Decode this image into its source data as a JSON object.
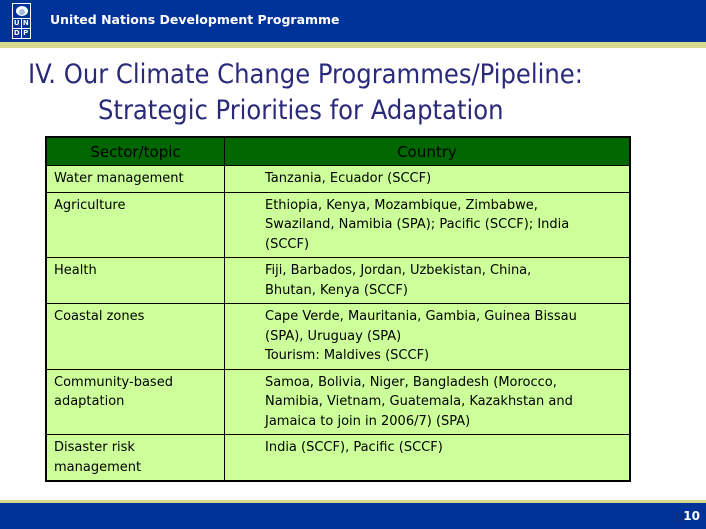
{
  "header": {
    "logo_letters": [
      "U",
      "N",
      "D",
      "P"
    ],
    "org_name": "United Nations Development Programme",
    "colors": {
      "bar": "#003399",
      "stripe": "#d8db8e"
    }
  },
  "slide": {
    "title_line1": "IV. Our Climate Change Programmes/Pipeline:",
    "title_line2": "Strategic Priorities for Adaptation"
  },
  "table": {
    "columns": [
      "Sector/topic",
      "Country"
    ],
    "colors": {
      "header_bg": "#006600",
      "row_bg": "#ccff99"
    },
    "rows": [
      {
        "sector": "Water management",
        "country": [
          "Tanzania, Ecuador (SCCF)"
        ]
      },
      {
        "sector": "Agriculture",
        "country": [
          "Ethiopia, Kenya, Mozambique, Zimbabwe,",
          "Swaziland, Namibia (SPA); Pacific (SCCF); India",
          "(SCCF)"
        ]
      },
      {
        "sector": "Health",
        "country": [
          "Fiji, Barbados, Jordan, Uzbekistan, China,",
          "Bhutan, Kenya (SCCF)"
        ]
      },
      {
        "sector": "Coastal zones",
        "country": [
          "Cape Verde, Mauritania, Gambia, Guinea Bissau",
          "(SPA), Uruguay (SPA)",
          "Tourism: Maldives (SCCF)"
        ]
      },
      {
        "sector_lines": [
          "Community-based",
          "adaptation"
        ],
        "country": [
          "Samoa, Bolivia, Niger, Bangladesh (Morocco,",
          "Namibia, Vietnam, Guatemala, Kazakhstan and",
          "Jamaica to join in 2006/7) (SPA)"
        ]
      },
      {
        "sector_lines": [
          "Disaster risk",
          "management"
        ],
        "country": [
          "India (SCCF), Pacific (SCCF)"
        ]
      }
    ]
  },
  "footer": {
    "page_ghost": "10",
    "page_number": "10"
  }
}
